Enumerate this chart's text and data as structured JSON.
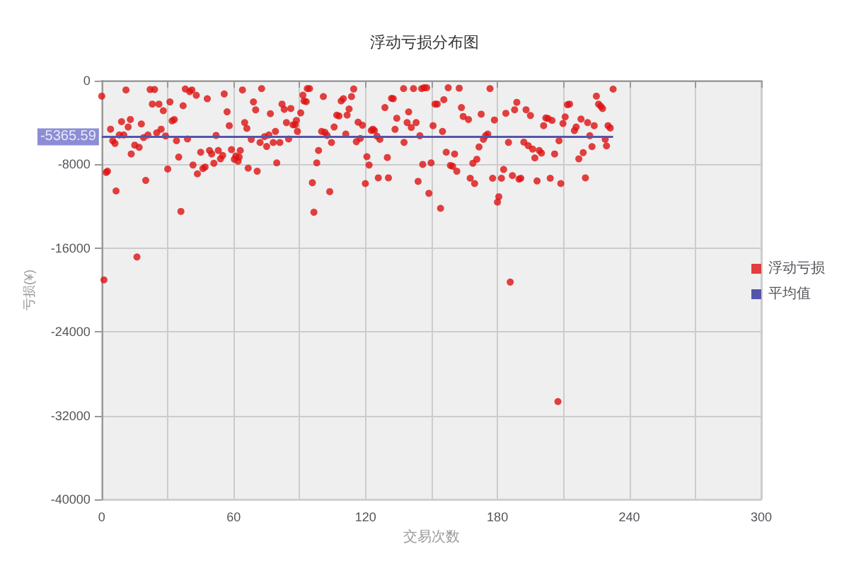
{
  "chart_data": {
    "type": "scatter",
    "title": "浮动亏损分布图",
    "xlabel": "交易次数",
    "ylabel": "亏损(¥)",
    "xlim": [
      0,
      300
    ],
    "xticks": [
      0,
      {
        "value": 30,
        "label": null
      },
      60,
      {
        "value": 90,
        "label": null
      },
      120,
      {
        "value": 150,
        "label": null
      },
      180,
      {
        "value": 210,
        "label": null
      },
      240,
      {
        "value": 270,
        "label": null
      },
      300
    ],
    "ylim": [
      -40000,
      0
    ],
    "yticks": [
      -40000,
      -32000,
      -24000,
      -16000,
      -8000,
      0
    ],
    "grid": true,
    "legend": "right",
    "annotations": [
      {
        "text": "-5365.59",
        "x": 0,
        "y": -5365.59
      }
    ],
    "series": [
      {
        "name": "浮动亏损",
        "marker": "circle",
        "color": "#dd1111",
        "x": [
          0,
          1,
          2,
          2.6,
          4,
          5,
          6,
          6.5,
          8,
          10,
          9,
          11,
          12,
          13,
          13.4,
          15,
          16,
          17,
          18,
          19,
          20,
          21,
          22,
          24,
          23,
          25,
          26,
          27,
          28,
          29,
          30,
          31,
          32,
          33,
          34,
          35,
          36,
          37,
          38,
          39,
          40,
          41,
          41.5,
          43,
          43.5,
          45,
          46,
          47,
          48,
          49,
          50,
          51,
          52,
          53,
          54,
          55,
          55.7,
          57,
          58,
          59,
          60.3,
          61,
          62,
          62.5,
          63,
          64,
          65,
          66,
          66.6,
          68,
          69,
          70,
          70.7,
          72,
          72.7,
          74,
          75,
          76,
          76.7,
          78,
          79,
          79.6,
          81,
          82,
          83,
          84,
          85,
          86,
          87,
          88,
          88.5,
          89,
          90.5,
          91.5,
          92,
          93,
          93.5,
          94.5,
          95.8,
          96.5,
          97.8,
          98.6,
          100,
          100.8,
          101.5,
          102.5,
          103.7,
          104.5,
          105.7,
          106.9,
          107.9,
          108.9,
          109.9,
          111,
          111.6,
          112.5,
          113.6,
          114.6,
          115.8,
          116.6,
          117.6,
          118.6,
          119.9,
          120.6,
          121.6,
          122.6,
          123.3,
          124,
          125.2,
          125.8,
          126.5,
          128.8,
          129.9,
          130.4,
          131.8,
          132.6,
          133.4,
          134.2,
          137.3,
          137.5,
          138.9,
          139.6,
          140.8,
          141.8,
          143,
          143.9,
          144.7,
          145.5,
          146,
          146.6,
          147.8,
          148.8,
          149.8,
          150.7,
          151.6,
          152.6,
          154.1,
          155,
          155.6,
          156.7,
          157.6,
          158.6,
          159.6,
          160.5,
          161.5,
          162.6,
          163.6,
          164.4,
          166.8,
          167.6,
          168.8,
          169.6,
          170.6,
          171.6,
          172.6,
          173.6,
          174.6,
          175.6,
          176.6,
          177.8,
          178.6,
          180,
          180.6,
          181.8,
          182.8,
          183.8,
          185,
          185.8,
          186.8,
          187.8,
          188.8,
          189.8,
          190.6,
          192,
          193,
          194,
          195,
          196,
          197,
          198,
          199,
          200,
          201,
          202,
          203,
          204,
          204.8,
          206,
          207.5,
          208,
          208.8,
          209.8,
          210.8,
          211.8,
          212.8,
          215,
          215.8,
          217,
          218,
          219,
          220,
          221,
          222,
          223,
          224,
          225,
          226,
          227,
          227.8,
          229,
          229.6,
          230.3,
          231.3,
          232.6
        ],
        "values": [
          -1480,
          -19030,
          -8770,
          -8650,
          -4640,
          -5740,
          -6000,
          -10540,
          -5190,
          -5190,
          -3920,
          -890,
          -4430,
          -3710,
          -7000,
          -6160,
          -16840,
          -6370,
          -4140,
          -5440,
          -9530,
          -5190,
          -850,
          -850,
          -2240,
          -4980,
          -2240,
          -4640,
          -2870,
          -5280,
          -8440,
          -2030,
          -3840,
          -3720,
          -5740,
          -7300,
          -12490,
          -2400,
          -800,
          -5570,
          -1050,
          -890,
          -8060,
          -1400,
          -8900,
          -6840,
          -8400,
          -8250,
          -1730,
          -6670,
          -7000,
          -7890,
          -5230,
          -6670,
          -7470,
          -7150,
          -1270,
          -2980,
          -4300,
          -6590,
          -7510,
          -7200,
          -7700,
          -7300,
          -6670,
          -890,
          -4010,
          -4560,
          -8360,
          -5610,
          -2030,
          -2790,
          -8650,
          -5910,
          -760,
          -5350,
          -6290,
          -5190,
          -3160,
          -5910,
          -4850,
          -7850,
          -5910,
          -2240,
          -2740,
          -4010,
          -5570,
          -2660,
          -4220,
          -4220,
          -3800,
          -4850,
          -3080,
          -1390,
          -1940,
          -2010,
          -760,
          -760,
          -9750,
          -12570,
          -7850,
          -6670,
          -4850,
          -1520,
          -4930,
          -5230,
          -10600,
          -5910,
          -4430,
          -3290,
          -3370,
          -1940,
          -1730,
          -5100,
          -3290,
          -2700,
          -1520,
          -800,
          -5830,
          -3970,
          -5520,
          -4260,
          -9830,
          -7260,
          -8060,
          -4760,
          -4640,
          -4760,
          -5300,
          -9280,
          -5600,
          -2570,
          -7340,
          -9280,
          -1690,
          -1730,
          -4650,
          -3590,
          -760,
          -5900,
          -4010,
          -2990,
          -4470,
          -760,
          -4010,
          -9620,
          -5260,
          -760,
          -8000,
          -680,
          -680,
          -10760,
          -7850,
          -4300,
          -2240,
          -2240,
          -12190,
          -4850,
          -1820,
          -6840,
          -680,
          -8100,
          -8180,
          -7010,
          -8650,
          -720,
          -2570,
          -3420,
          -3710,
          -9320,
          -7890,
          -9830,
          -7510,
          -6330,
          -3200,
          -5600,
          -5260,
          -5100,
          -760,
          -9320,
          -3760,
          -11600,
          -11090,
          -9320,
          -8480,
          -3120,
          -5900,
          -19240,
          -9070,
          -2780,
          -2070,
          -9400,
          -9320,
          -5870,
          -2780,
          -6210,
          -3330,
          -6540,
          -7380,
          -9580,
          -6670,
          -6920,
          -4300,
          -3560,
          -3620,
          -9320,
          -3800,
          -7000,
          -30650,
          -5740,
          -9830,
          -4090,
          -3460,
          -2300,
          -2240,
          -4770,
          -4430,
          -7470,
          -3670,
          -6880,
          -9280,
          -4010,
          -5260,
          -6300,
          -4300,
          -1480,
          -2240,
          -2450,
          -2660,
          -5600,
          -6230,
          -4300,
          -4520,
          -810
        ]
      },
      {
        "name": "平均值",
        "type": "line",
        "marker": "none",
        "color": "#5555aa",
        "x": [
          0,
          232.6
        ],
        "values": [
          -5365.59,
          -5365.59
        ]
      }
    ]
  }
}
